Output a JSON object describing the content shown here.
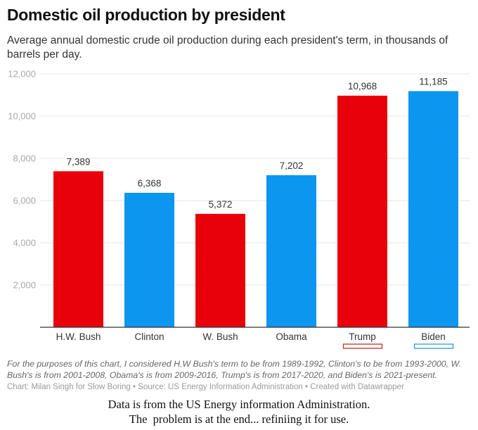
{
  "chart_data": {
    "type": "bar",
    "title": "Domestic oil production by president",
    "subtitle": "Average annual domestic crude oil production during each president's term, in thousands of barrels per day.",
    "xlabel": "",
    "ylabel": "",
    "ylim": [
      0,
      12000
    ],
    "yticks": [
      2000,
      4000,
      6000,
      8000,
      10000,
      12000
    ],
    "ytick_labels": [
      "2,000",
      "4,000",
      "6,000",
      "8,000",
      "10,000",
      "12,000"
    ],
    "grid": true,
    "categories": [
      "H.W. Bush",
      "Clinton",
      "W. Bush",
      "Obama",
      "Trump",
      "Biden"
    ],
    "values": [
      7389,
      6368,
      5372,
      7202,
      10968,
      11185
    ],
    "value_labels": [
      "7,389",
      "6,368",
      "5,372",
      "7,202",
      "10,968",
      "11,185"
    ],
    "party": [
      "R",
      "D",
      "R",
      "D",
      "R",
      "D"
    ],
    "colors": {
      "R": "#e8000b",
      "D": "#0b96f0"
    },
    "highlighted_categories": [
      "Trump",
      "Biden"
    ],
    "highlight_colors": {
      "Trump": "#c0302a",
      "Biden": "#2a9bd1"
    }
  },
  "footnote": "For the purposes of this chart, I considered H.W Bush's term to be from 1989-1992, Clinton's to be from 1993-2000, W. Bush's is from 2001-2008, Obama's is from 2009-2016, Trump's is from 2017-2020, and Biden's is 2021-present.",
  "credit": "Chart: Milan Singh for Slow Boring • Source: US Energy Information Administration • Created with Datawrapper",
  "caption": {
    "line1": "Data is from the US Energy information Administration.",
    "line2": "The  problem is at the end... refiniing it for use."
  }
}
